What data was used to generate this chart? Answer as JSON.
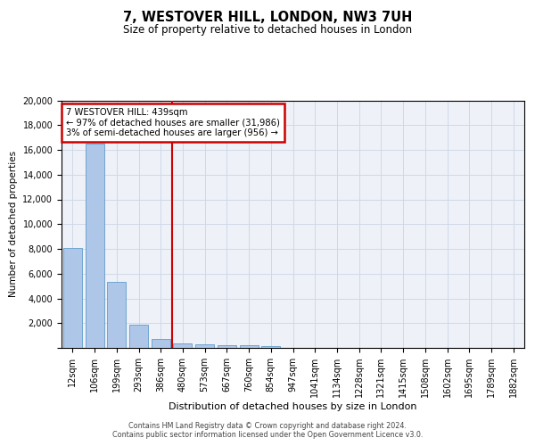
{
  "title": "7, WESTOVER HILL, LONDON, NW3 7UH",
  "subtitle": "Size of property relative to detached houses in London",
  "xlabel": "Distribution of detached houses by size in London",
  "ylabel": "Number of detached properties",
  "bar_categories": [
    "12sqm",
    "106sqm",
    "199sqm",
    "293sqm",
    "386sqm",
    "480sqm",
    "573sqm",
    "667sqm",
    "760sqm",
    "854sqm",
    "947sqm",
    "1041sqm",
    "1134sqm",
    "1228sqm",
    "1321sqm",
    "1415sqm",
    "1508sqm",
    "1602sqm",
    "1695sqm",
    "1789sqm",
    "1882sqm"
  ],
  "bar_values": [
    8100,
    16500,
    5300,
    1850,
    700,
    380,
    280,
    220,
    190,
    165,
    0,
    0,
    0,
    0,
    0,
    0,
    0,
    0,
    0,
    0,
    0
  ],
  "bar_color": "#aec6e8",
  "bar_edge_color": "#4a90c4",
  "ylim": [
    0,
    20000
  ],
  "yticks": [
    0,
    2000,
    4000,
    6000,
    8000,
    10000,
    12000,
    14000,
    16000,
    18000,
    20000
  ],
  "property_line_x": 4.5,
  "annotation_title": "7 WESTOVER HILL: 439sqm",
  "annotation_line1": "← 97% of detached houses are smaller (31,986)",
  "annotation_line2": "3% of semi-detached houses are larger (956) →",
  "annotation_box_color": "#cc0000",
  "grid_color": "#d0d8e8",
  "background_color": "#eef2f8",
  "footer_line1": "Contains HM Land Registry data © Crown copyright and database right 2024.",
  "footer_line2": "Contains public sector information licensed under the Open Government Licence v3.0."
}
